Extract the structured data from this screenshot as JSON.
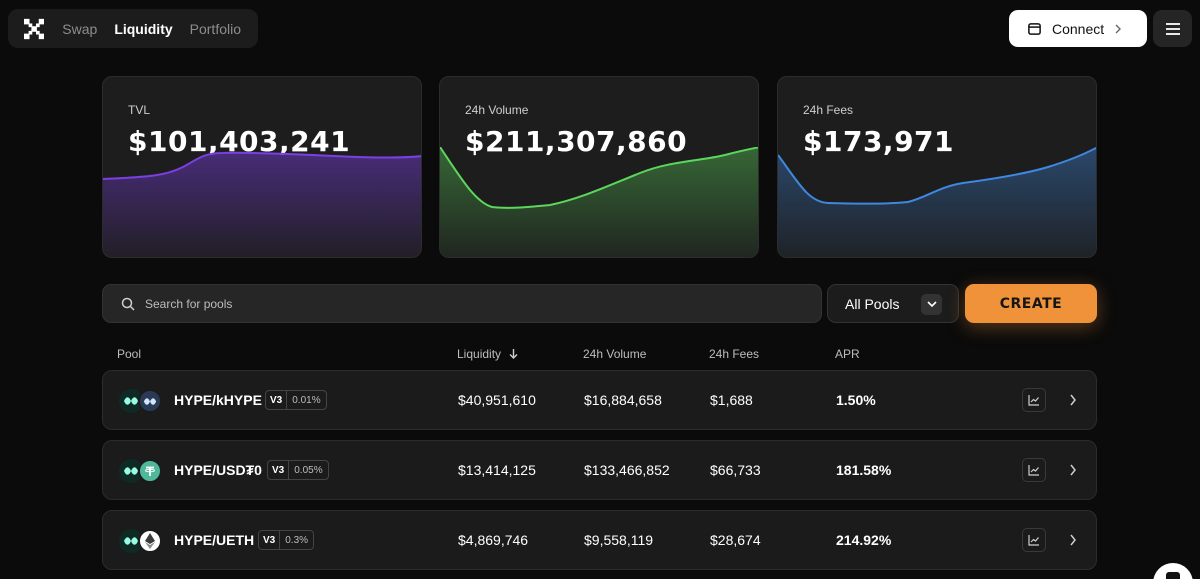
{
  "nav": {
    "links": [
      "Swap",
      "Liquidity",
      "Portfolio"
    ],
    "connect_label": "Connect"
  },
  "stats": [
    {
      "label": "TVL",
      "value": "$101,403,241",
      "color": "#7b3fe4"
    },
    {
      "label": "24h Volume",
      "value": "$211,307,860",
      "color": "#5cd65c"
    },
    {
      "label": "24h Fees",
      "value": "$173,971",
      "color": "#3f88e0"
    }
  ],
  "search": {
    "placeholder": "Search for pools"
  },
  "filter": {
    "selected": "All Pools"
  },
  "create_label": "CREATE",
  "table": {
    "headers": {
      "pool": "Pool",
      "liquidity": "Liquidity",
      "volume": "24h Volume",
      "fees": "24h Fees",
      "apr": "APR"
    },
    "rows": [
      {
        "pair": "HYPE/kHYPE",
        "version": "V3",
        "fee_tier": "0.01%",
        "liquidity": "$40,951,610",
        "volume": "$16,884,658",
        "fees": "$1,688",
        "apr": "1.50%"
      },
      {
        "pair": "HYPE/USD₮0",
        "version": "V3",
        "fee_tier": "0.05%",
        "liquidity": "$13,414,125",
        "volume": "$133,466,852",
        "fees": "$66,733",
        "apr": "181.58%"
      },
      {
        "pair": "HYPE/UETH",
        "version": "V3",
        "fee_tier": "0.3%",
        "liquidity": "$4,869,746",
        "volume": "$9,558,119",
        "fees": "$28,674",
        "apr": "214.92%"
      }
    ]
  }
}
